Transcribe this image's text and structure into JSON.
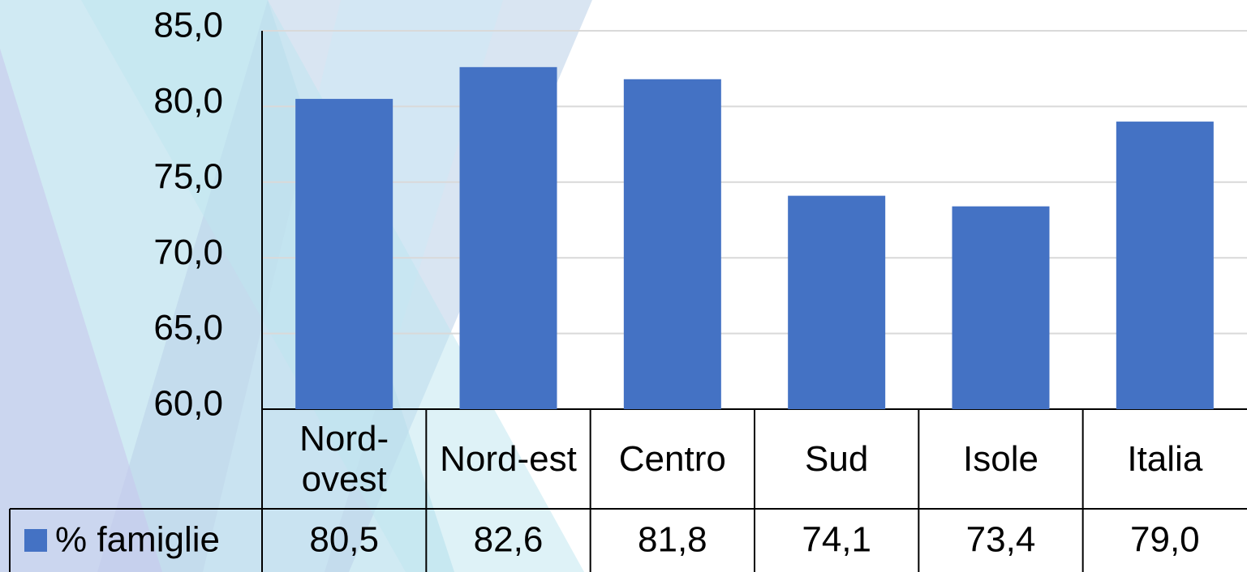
{
  "chart_data": {
    "type": "bar",
    "categories": [
      "Nord-ovest",
      "Nord-est",
      "Centro",
      "Sud",
      "Isole",
      "Italia"
    ],
    "series": [
      {
        "name": "% famiglie",
        "color": "#4472c4",
        "values": [
          80.5,
          82.6,
          81.8,
          74.1,
          73.4,
          79.0
        ],
        "value_labels": [
          "80,5",
          "82,6",
          "81,8",
          "74,1",
          "73,4",
          "79,0"
        ]
      }
    ],
    "ylim": [
      60,
      85
    ],
    "yticks": [
      {
        "value": 60,
        "label": "60,0"
      },
      {
        "value": 65,
        "label": "65,0"
      },
      {
        "value": 70,
        "label": "70,0"
      },
      {
        "value": 75,
        "label": "75,0"
      },
      {
        "value": 80,
        "label": "80,0"
      },
      {
        "value": 85,
        "label": "85,0"
      }
    ],
    "grid": true
  }
}
